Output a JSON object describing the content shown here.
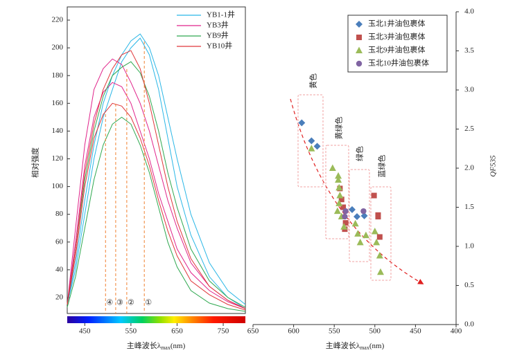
{
  "chart_data": [
    {
      "type": "line",
      "y_label": "相对强度",
      "x_label_parts": [
        "主峰波长λ",
        "max",
        "(nm)"
      ],
      "xlim": [
        412,
        798
      ],
      "xticks": [
        450,
        550,
        650,
        750
      ],
      "ylim": [
        8.5,
        229.5
      ],
      "yticks": [
        20,
        40,
        60,
        80,
        100,
        120,
        140,
        160,
        180,
        200,
        220
      ],
      "x": [
        412,
        430,
        450,
        470,
        490,
        510,
        530,
        550,
        570,
        590,
        610,
        630,
        650,
        680,
        720,
        760,
        798
      ],
      "series": [
        {
          "name": "YB1-1井",
          "color": "#29b6e6",
          "values": [
            15,
            45,
            90,
            130,
            160,
            180,
            195,
            205,
            210,
            200,
            180,
            150,
            120,
            80,
            45,
            25,
            15
          ]
        },
        {
          "name": "YB1-1井",
          "color": "#29b6e6",
          "values": [
            15,
            40,
            80,
            120,
            150,
            170,
            190,
            200,
            207,
            195,
            170,
            135,
            100,
            65,
            35,
            20,
            12
          ]
        },
        {
          "name": "YB3井",
          "color": "#e0238a",
          "values": [
            15,
            70,
            130,
            170,
            185,
            192,
            188,
            175,
            160,
            140,
            115,
            90,
            70,
            45,
            28,
            18,
            12
          ]
        },
        {
          "name": "YB3井",
          "color": "#e0238a",
          "values": [
            15,
            60,
            115,
            150,
            168,
            175,
            172,
            160,
            140,
            120,
            95,
            75,
            55,
            38,
            25,
            17,
            12
          ]
        },
        {
          "name": "YB9井",
          "color": "#2ea84f",
          "values": [
            15,
            55,
            105,
            140,
            165,
            180,
            186,
            190,
            182,
            165,
            140,
            110,
            85,
            55,
            32,
            20,
            13
          ]
        },
        {
          "name": "YB9井",
          "color": "#2ea84f",
          "values": [
            13,
            35,
            70,
            105,
            130,
            145,
            150,
            145,
            130,
            110,
            85,
            60,
            42,
            25,
            16,
            12,
            10
          ]
        },
        {
          "name": "YB10井",
          "color": "#e0363a",
          "values": [
            15,
            55,
            110,
            145,
            170,
            185,
            195,
            198,
            185,
            160,
            130,
            100,
            75,
            48,
            28,
            18,
            12
          ]
        },
        {
          "name": "YB10井",
          "color": "#e0363a",
          "values": [
            15,
            50,
            100,
            135,
            152,
            160,
            158,
            150,
            135,
            115,
            90,
            68,
            50,
            32,
            22,
            15,
            11
          ]
        }
      ],
      "markers": [
        {
          "x": 495,
          "label": "④"
        },
        {
          "x": 517,
          "label": "③"
        },
        {
          "x": 541,
          "label": "②"
        },
        {
          "x": 579,
          "label": "①"
        }
      ]
    },
    {
      "type": "scatter",
      "x_label_parts": [
        "主峰波长λ",
        "max",
        "(nm)"
      ],
      "y2_label": "QF535",
      "xlim": [
        650,
        400
      ],
      "xticks": [
        650,
        600,
        550,
        500,
        450,
        400
      ],
      "y2lim": [
        0,
        4
      ],
      "y2ticks": [
        {
          "value": 0,
          "label": "0.0"
        },
        {
          "value": 0.5,
          "label": "0.5"
        },
        {
          "value": 1,
          "label": "1.0"
        },
        {
          "value": 1.5,
          "label": "1.5"
        },
        {
          "value": 2,
          "label": "2.0"
        },
        {
          "value": 2.5,
          "label": "2.5"
        },
        {
          "value": 3,
          "label": "3.0"
        },
        {
          "value": 3.5,
          "label": "3.5"
        },
        {
          "value": 4,
          "label": "4.0"
        }
      ],
      "series": [
        {
          "name": "玉北1井油包裹体",
          "color": "#4a7ebb",
          "marker": "diamond",
          "axis": "y2",
          "x": [
            590,
            578,
            571,
            528,
            522,
            513
          ],
          "values": [
            2.58,
            2.35,
            2.28,
            1.47,
            1.38,
            1.39
          ]
        },
        {
          "name": "玉北3井油包裹体",
          "color": "#c0504d",
          "marker": "square",
          "axis": "y2",
          "x": [
            543,
            541,
            539,
            537,
            501,
            496,
            496,
            494,
            536
          ],
          "values": [
            1.74,
            1.6,
            1.5,
            1.22,
            1.65,
            1.4,
            1.38,
            1.12,
            1.3
          ]
        },
        {
          "name": "玉北9井油包裹体",
          "color": "#9bbb59",
          "marker": "triangle",
          "axis": "y2",
          "x": [
            578,
            552,
            545,
            544,
            543,
            544,
            546,
            541,
            524,
            521,
            518,
            511,
            500,
            498,
            494,
            493,
            538,
            545
          ],
          "values": [
            2.25,
            2.0,
            1.9,
            1.75,
            1.65,
            1.55,
            1.45,
            1.38,
            1.29,
            1.16,
            1.05,
            1.14,
            1.19,
            1.05,
            0.88,
            0.67,
            1.25,
            1.85
          ]
        },
        {
          "name": "玉北10井油包裹体",
          "color": "#8064a2",
          "marker": "circle",
          "axis": "y2",
          "x": [
            514,
            537,
            536
          ],
          "values": [
            1.45,
            1.38,
            1.45
          ]
        }
      ],
      "annotations": [
        "黄色",
        "黄绿色",
        "绿色",
        "蓝绿色"
      ]
    }
  ]
}
